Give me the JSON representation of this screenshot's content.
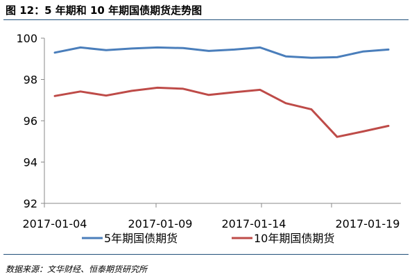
{
  "figure_title": "图 12：5 年期和 10 年期国债期货走势图",
  "source_note": "数据来源：文华财经、恒泰期货研究所",
  "colors": {
    "series1": "#4a7ebb",
    "series2": "#be4b48",
    "axis": "#888888",
    "rule": "#1f4e79"
  },
  "chart_data": {
    "type": "line",
    "title": "",
    "xlabel": "",
    "ylabel": "",
    "ylim": [
      92,
      100
    ],
    "yticks": [
      92,
      94,
      96,
      98,
      100
    ],
    "grid": false,
    "legend": "bottom",
    "xtick_labels": [
      "2017-01-04",
      "2017-01-09",
      "2017-01-14",
      "2017-01-19"
    ],
    "x": [
      "2017-01-03",
      "2017-01-04",
      "2017-01-05",
      "2017-01-06",
      "2017-01-09",
      "2017-01-10",
      "2017-01-11",
      "2017-01-12",
      "2017-01-13",
      "2017-01-16",
      "2017-01-17",
      "2017-01-18",
      "2017-01-19",
      "2017-01-20"
    ],
    "series": [
      {
        "name": "5年期国债期货",
        "values": [
          99.3,
          99.55,
          99.42,
          99.5,
          99.55,
          99.52,
          99.38,
          99.45,
          99.55,
          99.12,
          99.05,
          99.08,
          99.35,
          99.45
        ]
      },
      {
        "name": "10年期国债期货",
        "values": [
          97.2,
          97.42,
          97.22,
          97.45,
          97.6,
          97.55,
          97.25,
          97.38,
          97.5,
          96.85,
          96.55,
          95.22,
          95.48,
          95.75
        ]
      }
    ]
  }
}
